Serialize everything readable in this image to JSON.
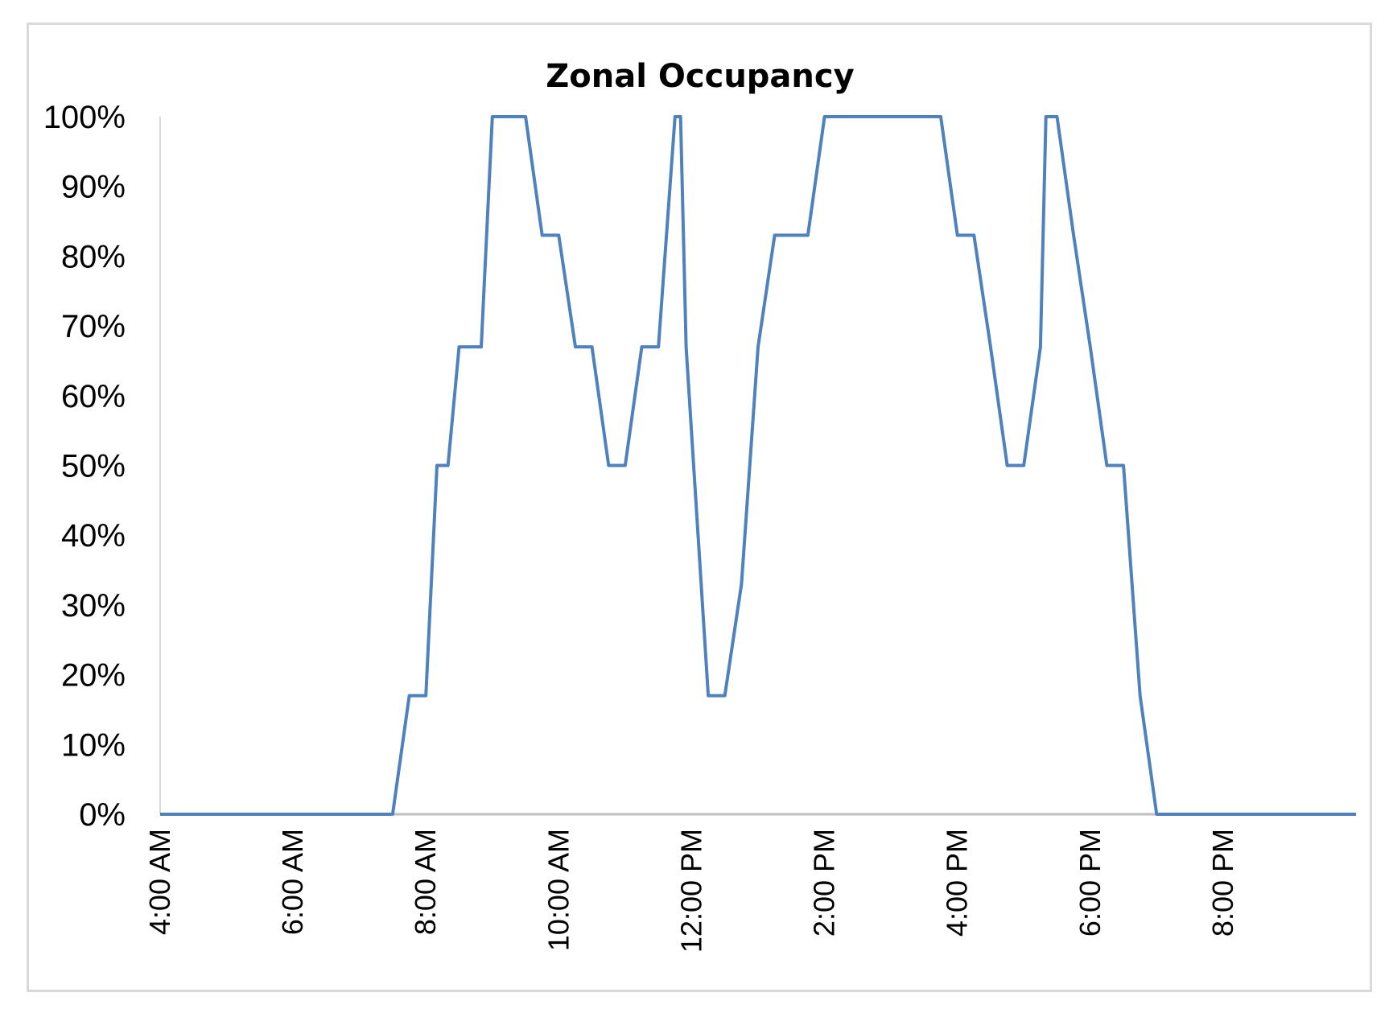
{
  "chart_data": {
    "type": "line",
    "title": "Zonal Occupancy",
    "xlabel": "",
    "ylabel": "",
    "x_ticks": [
      "4:00 AM",
      "6:00 AM",
      "8:00 AM",
      "10:00 AM",
      "12:00 PM",
      "2:00 PM",
      "4:00 PM",
      "6:00 PM",
      "8:00 PM"
    ],
    "y_ticks": [
      "0%",
      "10%",
      "20%",
      "30%",
      "40%",
      "50%",
      "60%",
      "70%",
      "80%",
      "90%",
      "100%"
    ],
    "ylim": [
      0,
      100
    ],
    "xlim": [
      "4:00 AM",
      "10:00 PM"
    ],
    "grid": false,
    "legend": "none",
    "series": [
      {
        "color": "#4f81bd",
        "x": [
          "4:00 AM",
          "7:30 AM",
          "7:45 AM",
          "8:00 AM",
          "8:10 AM",
          "8:20 AM",
          "8:30 AM",
          "8:45 AM",
          "8:50 AM",
          "9:00 AM",
          "9:30 AM",
          "9:45 AM",
          "10:00 AM",
          "10:15 AM",
          "10:30 AM",
          "10:45 AM",
          "11:00 AM",
          "11:15 AM",
          "11:30 AM",
          "11:45 AM",
          "11:50 AM",
          "11:55 AM",
          "12:15 PM",
          "12:30 PM",
          "12:45 PM",
          "1:00 PM",
          "1:15 PM",
          "1:30 PM",
          "1:45 PM",
          "2:00 PM",
          "3:45 PM",
          "4:00 PM",
          "4:15 PM",
          "4:30 PM",
          "4:45 PM",
          "5:00 PM",
          "5:15 PM",
          "5:20 PM",
          "5:30 PM",
          "5:45 PM",
          "6:00 PM",
          "6:15 PM",
          "6:30 PM",
          "6:45 PM",
          "7:00 PM",
          "10:00 PM"
        ],
        "values": [
          0,
          0,
          17,
          17,
          50,
          50,
          67,
          67,
          67,
          100,
          100,
          83,
          83,
          67,
          67,
          50,
          50,
          67,
          67,
          100,
          100,
          67,
          17,
          17,
          33,
          67,
          83,
          83,
          83,
          100,
          100,
          83,
          83,
          67,
          50,
          50,
          67,
          100,
          100,
          83,
          67,
          50,
          50,
          17,
          0,
          0
        ]
      }
    ]
  }
}
